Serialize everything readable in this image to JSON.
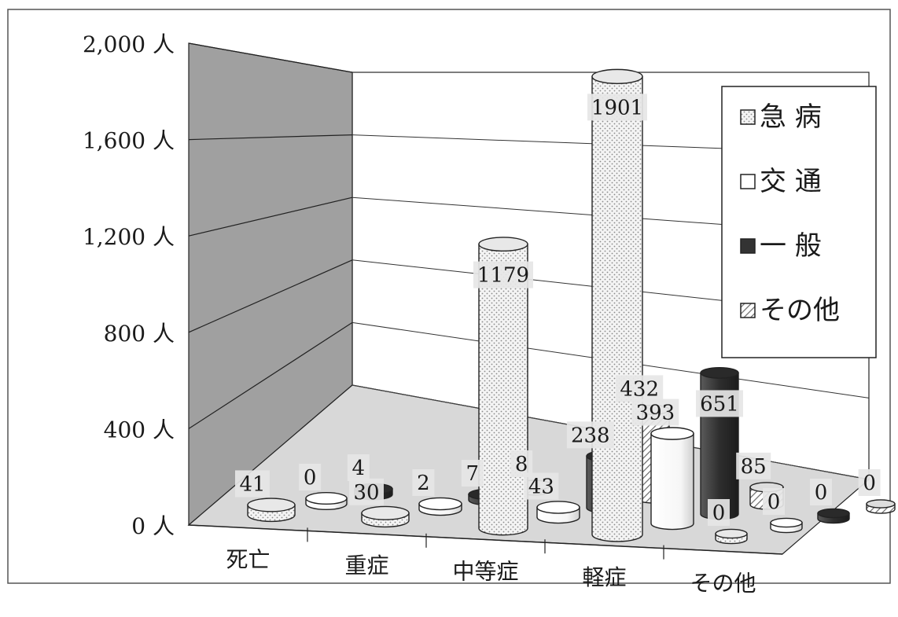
{
  "chart_data": {
    "type": "bar",
    "variant": "3d-cylinder",
    "categories": [
      "死亡",
      "重症",
      "中等症",
      "軽症",
      "その他"
    ],
    "y_ticks": [
      "0 人",
      "400 人",
      "800 人",
      "1,200 人",
      "1,600 人",
      "2,000 人"
    ],
    "ylim": [
      0,
      2000
    ],
    "grid": true,
    "legend_position": "right",
    "series": [
      {
        "name": "急 病",
        "values": [
          41,
          30,
          1179,
          1901,
          0
        ]
      },
      {
        "name": "交 通",
        "values": [
          0,
          2,
          43,
          393,
          0
        ]
      },
      {
        "name": "一 般",
        "values": [
          4,
          7,
          238,
          651,
          0
        ]
      },
      {
        "name": "その他",
        "values": [
          null,
          8,
          432,
          85,
          0
        ]
      }
    ],
    "legend": [
      "急 病",
      "交 通",
      "一 般",
      "その他"
    ],
    "colors": {
      "back_wall": "#a0a0a0",
      "floor": "#d8d8d8",
      "急 病": "#f2f2f2",
      "交 通": "#ffffff",
      "一 般": "#3a3a3a",
      "その他": "#cfcfcf"
    }
  }
}
